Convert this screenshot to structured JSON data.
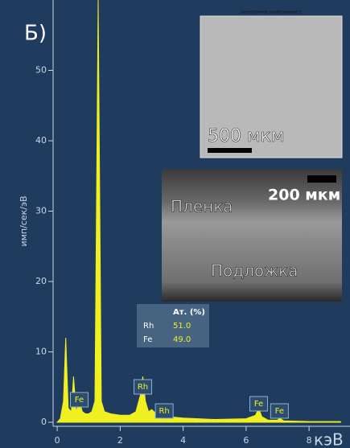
{
  "chart_data": {
    "type": "area",
    "panel_label": "Б)",
    "ylabel": "имп/сек/эВ",
    "xlabel": "кэВ",
    "color": "#f0f020",
    "x": [
      0,
      0.1,
      0.2,
      0.27,
      0.35,
      0.45,
      0.52,
      0.6,
      0.7,
      0.8,
      0.9,
      1.0,
      1.1,
      1.2,
      1.3,
      1.4,
      1.5,
      1.7,
      2.0,
      2.3,
      2.5,
      2.65,
      2.72,
      2.8,
      2.9,
      3.0,
      3.2,
      3.5,
      4.0,
      5.0,
      6.0,
      6.3,
      6.4,
      6.5,
      6.7,
      7.0,
      7.06,
      7.2,
      8.0,
      9.0
    ],
    "values": [
      0,
      0.5,
      3,
      12,
      2,
      1.5,
      6.5,
      1.5,
      3,
      1.5,
      1.2,
      1.2,
      1.5,
      3,
      60,
      3,
      1.5,
      1.2,
      1,
      1,
      1.5,
      4,
      6.5,
      3,
      1.5,
      1.8,
      1,
      0.8,
      0.6,
      0.4,
      0.5,
      1,
      2,
      0.8,
      0.3,
      0.3,
      0.6,
      0.2,
      0.1,
      0.1
    ],
    "xlim": [
      -0.13,
      9.3
    ],
    "ylim": [
      0,
      60
    ],
    "xticks": [
      0,
      2,
      4,
      6,
      8
    ],
    "yticks": [
      0,
      10,
      20,
      30,
      40,
      50
    ],
    "annotations": [
      {
        "text": "Fe",
        "x": 0.7
      },
      {
        "text": "Rh",
        "x": 2.72
      },
      {
        "text": "Rh",
        "x": 3.4
      },
      {
        "text": "Fe",
        "x": 6.4
      },
      {
        "text": "Fe",
        "x": 7.06
      }
    ],
    "table": {
      "header": "Ат. (%)",
      "rows": [
        [
          "Rh",
          "51.0"
        ],
        [
          "Fe",
          "49.0"
        ]
      ]
    },
    "inset_top": {
      "title": "Электронное изображение 1",
      "scale": "500 мкм"
    },
    "inset_bottom": {
      "scale": "200 мкм",
      "film": "Пленка",
      "substrate": "Подложка"
    }
  }
}
